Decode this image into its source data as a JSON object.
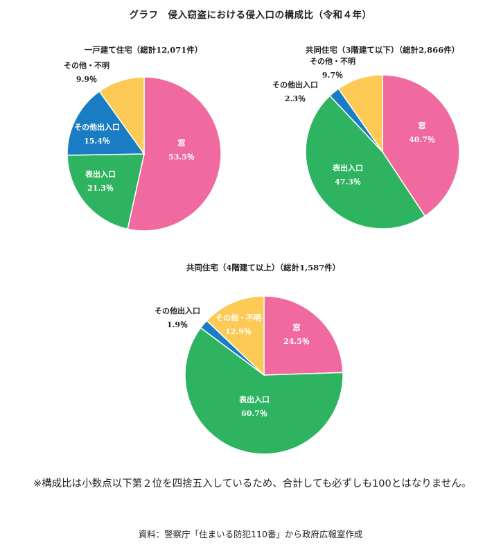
{
  "title": "グラフ　侵入窃盗における侵入口の構成比（令和４年）",
  "footnote": "※構成比は小数点以下第２位を四捨五入しているため、合計しても必ずしも100とはなりません。",
  "source": "資料：警察庁「住まいる防犯110番」から政府広報室作成",
  "colors": {
    "窓": "#f06a9f",
    "表出入口": "#2eb361",
    "その他出入口": "#1a7cc2",
    "その他・不明": "#fcca55"
  },
  "chart_data": [
    {
      "type": "pie",
      "title": "一戸建て住宅（総計12,071件）",
      "categories": [
        "窓",
        "表出入口",
        "その他出入口",
        "その他・不明"
      ],
      "values": [
        53.5,
        21.3,
        15.4,
        9.9
      ],
      "labels": [
        "53.5％",
        "21.3％",
        "15.4％",
        "9.9％"
      ]
    },
    {
      "type": "pie",
      "title": "共同住宅（3階建て以下）（総計2,866件）",
      "categories": [
        "窓",
        "表出入口",
        "その他出入口",
        "その他・不明"
      ],
      "values": [
        40.7,
        47.3,
        2.3,
        9.7
      ],
      "labels": [
        "40.7％",
        "47.3％",
        "2.3％",
        "9.7％"
      ]
    },
    {
      "type": "pie",
      "title": "共同住宅（4階建て以上）（総計1,587件）",
      "categories": [
        "窓",
        "表出入口",
        "その他出入口",
        "その他・不明"
      ],
      "values": [
        24.5,
        60.7,
        1.9,
        12.9
      ],
      "labels": [
        "24.5％",
        "60.7％",
        "1.9％",
        "12.9％"
      ]
    }
  ]
}
